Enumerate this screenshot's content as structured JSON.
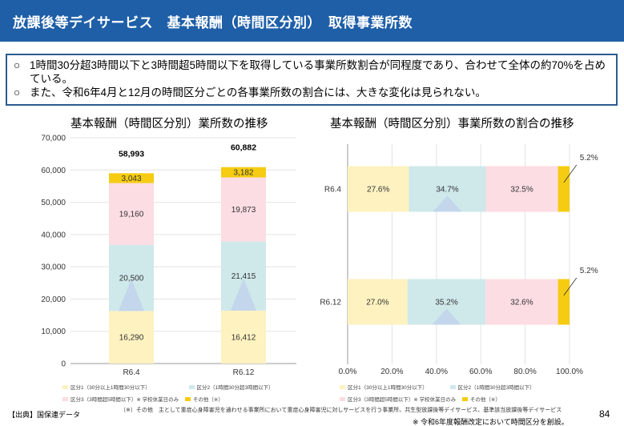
{
  "header": {
    "title": "放課後等デイサービス　基本報酬（時間区分別）　取得事業所数"
  },
  "summary": {
    "mark": "○",
    "lines": [
      "1時間30分超3時間以下と3時間超5時間以下を取得している事業所数割合が同程度であり、合わせて全体の約70%を占めている。",
      "また、令和6年4月と12月の時間区分ごとの各事業所数の割合には、大きな変化は見られない。"
    ]
  },
  "left_chart_title": "基本報酬（時間区分別）業所数の推移",
  "right_chart_title": "基本報酬（時間区分別）事業所数の割合の推移",
  "colors": {
    "k1": "#fdf2c0",
    "k2": "#cfe8ea",
    "k3": "#fcdde3",
    "school": "#b9c7ec",
    "other": "#f5cc12",
    "header_bg": "#1f5fa8",
    "summary_border": "#2c5b8f"
  },
  "legend": {
    "k1": "区分1（30分以上1時間30分以下）",
    "k2": "区分2（1時間30分超3時間以下）",
    "k3": "区分3（3時間超5時間以下）※ 学校休業日のみ",
    "other": "その他（※）"
  },
  "chart_data": [
    {
      "type": "bar",
      "stacked": true,
      "title": "基本報酬（時間区分別）業所数の推移",
      "categories": [
        "R6.4",
        "R6.12"
      ],
      "ylim": [
        0,
        70000
      ],
      "yticks": [
        "0",
        "10,000",
        "20,000",
        "30,000",
        "40,000",
        "50,000",
        "60,000",
        "70,000"
      ],
      "totals": [
        "58,993",
        "60,882"
      ],
      "series": [
        {
          "key": "k1",
          "values": [
            16290,
            16412
          ],
          "labels": [
            "16,290",
            "16,412"
          ]
        },
        {
          "key": "k2",
          "values": [
            20500,
            21415
          ],
          "labels": [
            "20,500",
            "21,415"
          ]
        },
        {
          "key": "k3",
          "values": [
            19160,
            19873
          ],
          "labels": [
            "19,160",
            "19,873"
          ]
        },
        {
          "key": "other",
          "values": [
            3043,
            3182
          ],
          "labels": [
            "3,043",
            "3,182"
          ]
        }
      ]
    },
    {
      "type": "bar",
      "orientation": "horizontal",
      "stacked_percent": true,
      "title": "基本報酬（時間区分別）事業所数の割合の推移",
      "categories": [
        "R6.4",
        "R6.12"
      ],
      "xlim": [
        0,
        100
      ],
      "xticks": [
        "0.0%",
        "20.0%",
        "40.0%",
        "60.0%",
        "80.0%",
        "100.0%"
      ],
      "series": [
        {
          "key": "k1",
          "values": [
            27.6,
            27.0
          ],
          "labels": [
            "27.6%",
            "27.0%"
          ]
        },
        {
          "key": "k2",
          "values": [
            34.7,
            35.2
          ],
          "labels": [
            "34.7%",
            "35.2%"
          ]
        },
        {
          "key": "k3",
          "values": [
            32.5,
            32.6
          ],
          "labels": [
            "32.5%",
            "32.6%"
          ]
        },
        {
          "key": "other",
          "values": [
            5.2,
            5.2
          ],
          "labels": [
            "5.2%",
            "5.2%"
          ]
        }
      ]
    }
  ],
  "footer": {
    "source": "【出典】国保連データ",
    "note1": "（※）その他　主として重症心身障害児を通わせる事業所において重症心身障害児に対しサービスを行う事業所、共生型放課後等デイサービス、基準該当放課後等デイサービス",
    "note2": "※ 令和6年度報酬改定において時間区分を創設。",
    "page": "84"
  }
}
